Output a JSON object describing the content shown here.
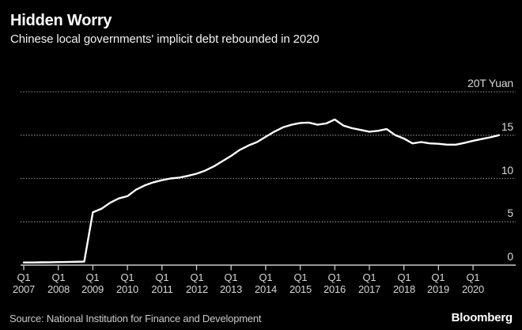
{
  "header": {
    "title": "Hidden Worry",
    "subtitle": "Chinese local governments' implicit debt rebounded in 2020"
  },
  "chart_data": {
    "type": "line",
    "title": "Hidden Worry",
    "subtitle": "Chinese local governments' implicit debt rebounded in 2020",
    "grid": "horizontal-dotted",
    "legend": "none",
    "line_color": "#ffffff",
    "background_color": "#000000",
    "y_axis": {
      "range": [
        0,
        20
      ],
      "unit": "T Yuan",
      "labels": [
        {
          "text": "20T Yuan",
          "value": 20
        },
        {
          "text": "15",
          "value": 15
        },
        {
          "text": "10",
          "value": 10
        },
        {
          "text": "5",
          "value": 5
        },
        {
          "text": "0",
          "value": 0
        }
      ]
    },
    "x_axis": {
      "tick_quarter_label": "Q1",
      "tick_years": [
        "2007",
        "2008",
        "2009",
        "2010",
        "2011",
        "2012",
        "2013",
        "2014",
        "2015",
        "2016",
        "2017",
        "2018",
        "2019",
        "2020"
      ]
    },
    "x": [
      "2007 Q1",
      "2007 Q2",
      "2007 Q3",
      "2007 Q4",
      "2008 Q1",
      "2008 Q2",
      "2008 Q3",
      "2008 Q4",
      "2009 Q1",
      "2009 Q2",
      "2009 Q3",
      "2009 Q4",
      "2010 Q1",
      "2010 Q2",
      "2010 Q3",
      "2010 Q4",
      "2011 Q1",
      "2011 Q2",
      "2011 Q3",
      "2011 Q4",
      "2012 Q1",
      "2012 Q2",
      "2012 Q3",
      "2012 Q4",
      "2013 Q1",
      "2013 Q2",
      "2013 Q3",
      "2013 Q4",
      "2014 Q1",
      "2014 Q2",
      "2014 Q3",
      "2014 Q4",
      "2015 Q1",
      "2015 Q2",
      "2015 Q3",
      "2015 Q4",
      "2016 Q1",
      "2016 Q2",
      "2016 Q3",
      "2016 Q4",
      "2017 Q1",
      "2017 Q2",
      "2017 Q3",
      "2017 Q4",
      "2018 Q1",
      "2018 Q2",
      "2018 Q3",
      "2018 Q4",
      "2019 Q1",
      "2019 Q2",
      "2019 Q3",
      "2019 Q4",
      "2020 Q1",
      "2020 Q2",
      "2020 Q3",
      "2020 Q4"
    ],
    "series": [
      {
        "name": "Chinese local governments' implicit debt (T Yuan)",
        "values": [
          0.3,
          0.3,
          0.32,
          0.33,
          0.35,
          0.36,
          0.38,
          0.4,
          6.1,
          6.5,
          7.2,
          7.7,
          7.95,
          8.7,
          9.2,
          9.55,
          9.8,
          10.0,
          10.1,
          10.3,
          10.55,
          10.9,
          11.4,
          12.0,
          12.6,
          13.3,
          13.8,
          14.2,
          14.8,
          15.4,
          15.9,
          16.2,
          16.4,
          16.45,
          16.2,
          16.35,
          16.8,
          16.1,
          15.8,
          15.6,
          15.4,
          15.5,
          15.7,
          15.0,
          14.6,
          14.05,
          14.2,
          14.05,
          14.0,
          13.9,
          13.9,
          14.1,
          14.35,
          14.55,
          14.75,
          15.0
        ]
      }
    ]
  },
  "footer": {
    "source": "Source: National Institution for Finance and Development",
    "brand": "Bloomberg"
  }
}
